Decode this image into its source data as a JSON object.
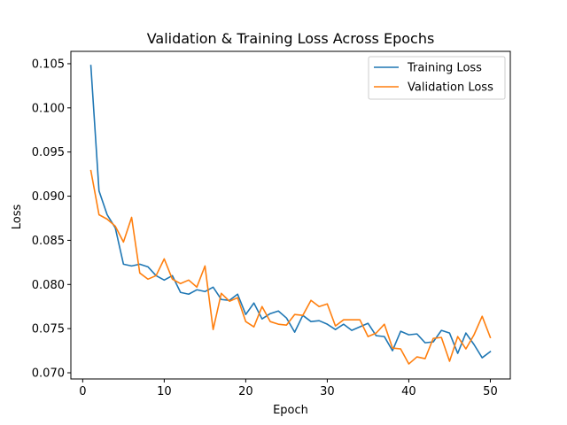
{
  "chart_data": {
    "type": "line",
    "title": "Validation & Training Loss Across Epochs",
    "xlabel": "Epoch",
    "ylabel": "Loss",
    "xlim": [
      -1.45,
      52.45
    ],
    "ylim": [
      0.0693,
      0.1064
    ],
    "xticks": [
      0,
      10,
      20,
      30,
      40,
      50
    ],
    "yticks": [
      0.07,
      0.075,
      0.08,
      0.085,
      0.09,
      0.095,
      0.1,
      0.105
    ],
    "ytick_labels": [
      "0.070",
      "0.075",
      "0.080",
      "0.085",
      "0.090",
      "0.095",
      "0.100",
      "0.105"
    ],
    "grid": false,
    "legend": "upper right",
    "x": [
      1,
      2,
      3,
      4,
      5,
      6,
      7,
      8,
      9,
      10,
      11,
      12,
      13,
      14,
      15,
      16,
      17,
      18,
      19,
      20,
      21,
      22,
      23,
      24,
      25,
      26,
      27,
      28,
      29,
      30,
      31,
      32,
      33,
      34,
      35,
      36,
      37,
      38,
      39,
      40,
      41,
      42,
      43,
      44,
      45,
      46,
      47,
      48,
      49,
      50
    ],
    "series": [
      {
        "name": "Training Loss",
        "color": "#1f77b4",
        "values": [
          0.1048,
          0.0906,
          0.0879,
          0.0864,
          0.0823,
          0.0821,
          0.0823,
          0.082,
          0.081,
          0.0805,
          0.081,
          0.0791,
          0.0789,
          0.0794,
          0.0792,
          0.0797,
          0.0783,
          0.0782,
          0.0789,
          0.0766,
          0.0779,
          0.0761,
          0.0767,
          0.077,
          0.0762,
          0.0746,
          0.0765,
          0.0758,
          0.0759,
          0.0755,
          0.0749,
          0.0755,
          0.0748,
          0.0752,
          0.0756,
          0.0742,
          0.0741,
          0.0725,
          0.0747,
          0.0743,
          0.0744,
          0.0734,
          0.0735,
          0.0748,
          0.0745,
          0.0722,
          0.0745,
          0.0732,
          0.0717,
          0.0724
        ]
      },
      {
        "name": "Validation Loss",
        "color": "#ff7f0e",
        "values": [
          0.0929,
          0.0879,
          0.0874,
          0.0866,
          0.0848,
          0.0876,
          0.0813,
          0.0806,
          0.081,
          0.0829,
          0.0806,
          0.0801,
          0.0805,
          0.0797,
          0.0821,
          0.0749,
          0.079,
          0.0781,
          0.0785,
          0.0758,
          0.0752,
          0.0775,
          0.0758,
          0.0755,
          0.0754,
          0.0766,
          0.0765,
          0.0782,
          0.0775,
          0.0778,
          0.0753,
          0.076,
          0.076,
          0.076,
          0.0741,
          0.0745,
          0.0755,
          0.0728,
          0.0727,
          0.071,
          0.0718,
          0.0716,
          0.0739,
          0.074,
          0.0713,
          0.0741,
          0.0727,
          0.0743,
          0.0764,
          0.074
        ]
      }
    ]
  }
}
